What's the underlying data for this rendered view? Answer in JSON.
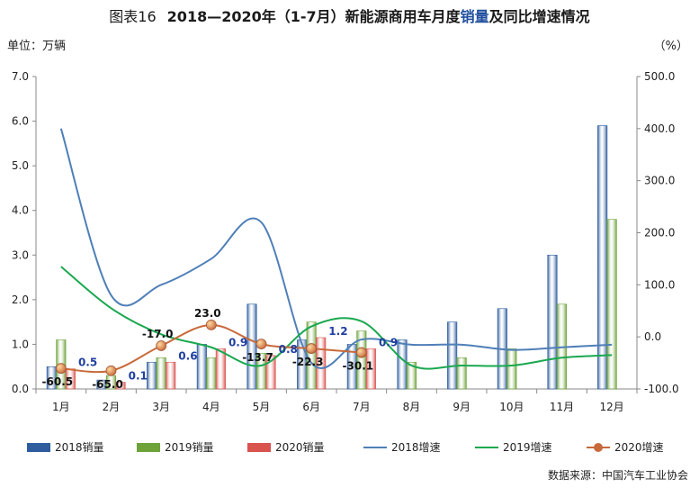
{
  "header": {
    "figure_no": "图表16",
    "title_main": "2018—2020年（1-7月）新能源商用车月度",
    "title_highlight": "销量",
    "title_tail": "及同比增速情况",
    "unit_left": "单位：万辆",
    "unit_right": "（%）"
  },
  "footer": {
    "source": "数据来源：中国汽车工业协会"
  },
  "colors": {
    "bar2018": "#2e5d9f",
    "bar2019": "#6ea33a",
    "bar2020": "#d9534f",
    "line2018": "#4f7fb8",
    "line2019": "#1aa84f",
    "line2020": "#c8693a",
    "label2020": "#1f3fa0"
  },
  "chart_data": {
    "type": "bar",
    "categories": [
      "1月",
      "2月",
      "3月",
      "4月",
      "5月",
      "6月",
      "7月",
      "8月",
      "9月",
      "10月",
      "11月",
      "12月"
    ],
    "y_left": {
      "ticks": [
        "0.0",
        "1.0",
        "2.0",
        "3.0",
        "4.0",
        "5.0",
        "6.0",
        "7.0"
      ],
      "ylim": [
        0,
        7
      ]
    },
    "y_right": {
      "ticks": [
        "-100.0",
        "0.0",
        "100.0",
        "200.0",
        "300.0",
        "400.0",
        "500.0"
      ],
      "ylim": [
        -100,
        500
      ]
    },
    "bar_series": [
      {
        "name": "2018销量",
        "values": [
          0.5,
          0.2,
          0.6,
          1.0,
          1.9,
          1.1,
          1.0,
          1.1,
          1.5,
          1.8,
          3.0,
          5.9
        ]
      },
      {
        "name": "2019销量",
        "values": [
          1.1,
          0.3,
          0.7,
          0.7,
          0.8,
          1.5,
          1.3,
          0.6,
          0.7,
          0.9,
          1.9,
          3.8
        ]
      },
      {
        "name": "2020销量",
        "values": [
          0.45,
          0.15,
          0.6,
          0.9,
          0.75,
          1.15,
          0.9,
          null,
          null,
          null,
          null,
          null
        ]
      }
    ],
    "line_series": [
      {
        "name": "2018增速",
        "values": [
          400,
          80,
          100,
          150,
          220,
          -50,
          -5,
          -15,
          -15,
          -25,
          -20,
          -15
        ]
      },
      {
        "name": "2019增速",
        "values": [
          135,
          55,
          5,
          -20,
          -55,
          20,
          30,
          -55,
          -55,
          -55,
          -40,
          -35
        ]
      },
      {
        "name": "2020增速",
        "values": [
          -60.5,
          -65.0,
          -17.0,
          23.0,
          -13.7,
          -22.3,
          -30.1,
          null,
          null,
          null,
          null,
          null
        ]
      }
    ],
    "data_labels_2020_sales": [
      "0.5",
      "0.1",
      "0.6",
      "0.9",
      "0.8",
      "1.2",
      "0.9"
    ],
    "data_labels_2020_growth": [
      "-60.5",
      "-65.0",
      "-17.0",
      "23.0",
      "-13.7",
      "-22.3",
      "-30.1"
    ]
  }
}
